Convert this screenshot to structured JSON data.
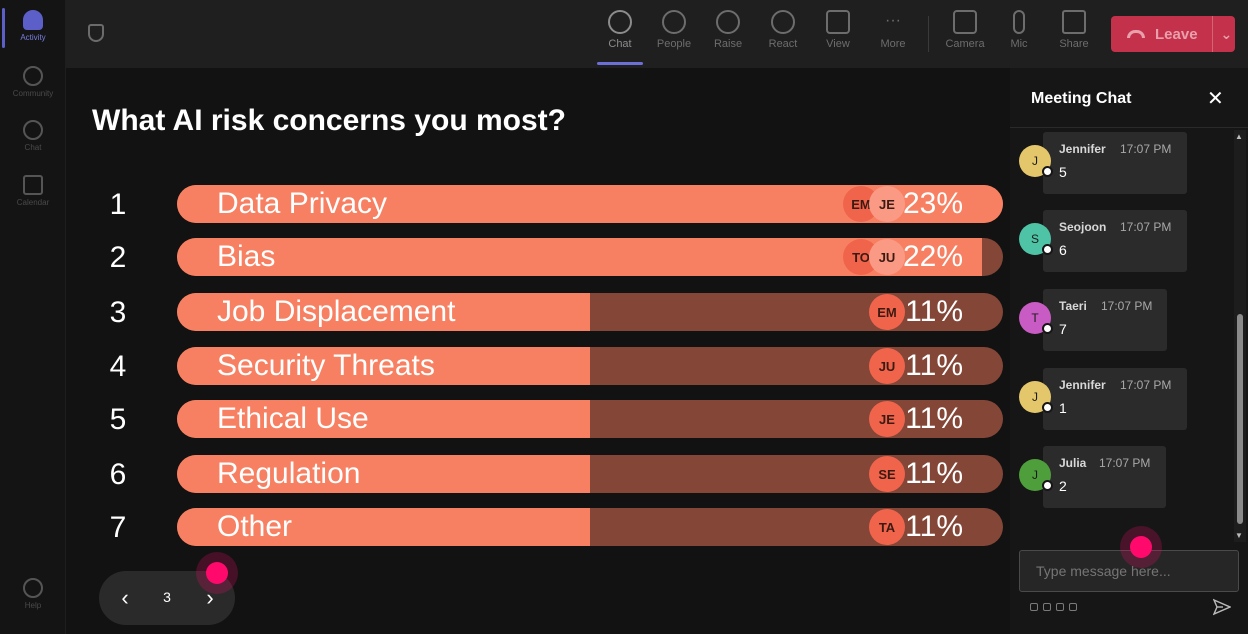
{
  "rail": {
    "items": [
      {
        "label": "Activity"
      },
      {
        "label": "Community"
      },
      {
        "label": "Chat"
      },
      {
        "label": "Calendar"
      }
    ],
    "help_label": "Help"
  },
  "toolbar": {
    "buttons": [
      {
        "label": "Chat",
        "icon": "chat-icon"
      },
      {
        "label": "People",
        "icon": "people-icon"
      },
      {
        "label": "Raise",
        "icon": "raise-hand-icon"
      },
      {
        "label": "React",
        "icon": "react-icon"
      },
      {
        "label": "View",
        "icon": "view-icon"
      },
      {
        "label": "More",
        "icon": "more-icon"
      },
      {
        "label": "Camera",
        "icon": "camera-off-icon"
      },
      {
        "label": "Mic",
        "icon": "mic-icon"
      },
      {
        "label": "Share",
        "icon": "share-icon"
      }
    ],
    "leave_label": "Leave",
    "leave_color": "#c4314b"
  },
  "poll": {
    "question": "What AI risk concerns you most?",
    "options": [
      {
        "rank": "1",
        "label": "Data Privacy",
        "percent": "23%",
        "fill_fraction": 1.0,
        "voters": [
          "EM",
          "JE"
        ]
      },
      {
        "rank": "2",
        "label": "Bias",
        "percent": "22%",
        "fill_fraction": 0.975,
        "voters": [
          "TO",
          "JU"
        ]
      },
      {
        "rank": "3",
        "label": "Job Displacement",
        "percent": "11%",
        "fill_fraction": 0.5,
        "voters": [
          "EM"
        ]
      },
      {
        "rank": "4",
        "label": "Security Threats",
        "percent": "11%",
        "fill_fraction": 0.5,
        "voters": [
          "JU"
        ]
      },
      {
        "rank": "5",
        "label": "Ethical Use",
        "percent": "11%",
        "fill_fraction": 0.5,
        "voters": [
          "JE"
        ]
      },
      {
        "rank": "6",
        "label": "Regulation",
        "percent": "11%",
        "fill_fraction": 0.5,
        "voters": [
          "SE"
        ]
      },
      {
        "rank": "7",
        "label": "Other",
        "percent": "11%",
        "fill_fraction": 0.5,
        "voters": [
          "TA"
        ]
      }
    ],
    "bar_color": "#f88062",
    "bar_track_color": "#834637"
  },
  "pager": {
    "page": "3"
  },
  "chat": {
    "title": "Meeting Chat",
    "messages": [
      {
        "initial": "J",
        "name": "Jennifer",
        "time": "17:07 PM",
        "text": "5",
        "avatar_color": "#e5c76b"
      },
      {
        "initial": "S",
        "name": "Seojoon",
        "time": "17:07 PM",
        "text": "6",
        "avatar_color": "#4ec3a6"
      },
      {
        "initial": "T",
        "name": "Taeri",
        "time": "17:07 PM",
        "text": "7",
        "avatar_color": "#c95bc4"
      },
      {
        "initial": "J",
        "name": "Jennifer",
        "time": "17:07 PM",
        "text": "1",
        "avatar_color": "#e5c76b"
      },
      {
        "initial": "J",
        "name": "Julia",
        "time": "17:07 PM",
        "text": "2",
        "avatar_color": "#4f9e3c"
      }
    ],
    "input_placeholder": "Type message here..."
  }
}
